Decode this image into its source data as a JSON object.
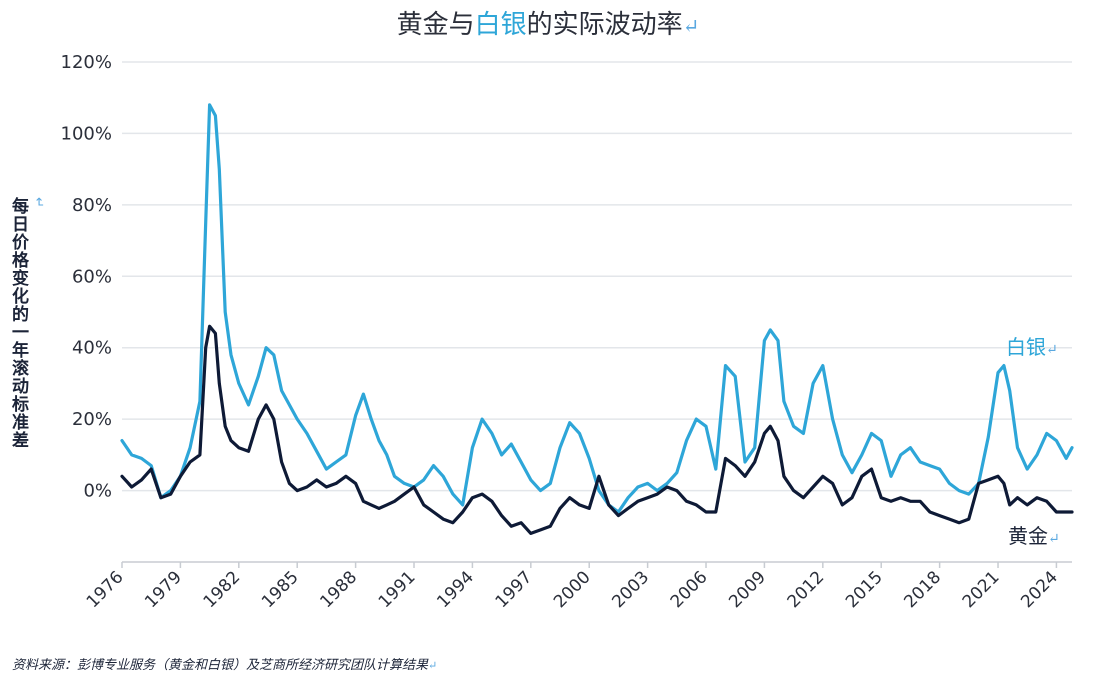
{
  "title_parts": {
    "pre": "黄金与",
    "highlight": "白银",
    "post": "的实际波动率",
    "mark": "↵"
  },
  "ylabel": "每日价格变化的一年滚动标准差",
  "ylabel_mark": "↵",
  "source_text": "资料来源：彭博专业服务（黄金和白银）及芝商所经济研究团队计算结果",
  "source_mark": "↵",
  "colors": {
    "silver": "#2ea6d8",
    "gold": "#0e1a36",
    "grid": "#e3e6ea",
    "axis": "#c8ccd2"
  },
  "chart_data": {
    "type": "line",
    "title": "黄金与白银的实际波动率",
    "ylabel": "每日价格变化的一年滚动标准差",
    "xlabel": "",
    "xlim": [
      1976,
      2024.8
    ],
    "ylim": [
      -20,
      120
    ],
    "y_ticks": [
      120,
      100,
      80,
      60,
      40,
      20,
      0
    ],
    "y_tick_labels": [
      "120%",
      "100%",
      "80%",
      "60%",
      "40%",
      "20%",
      "0%"
    ],
    "x_ticks": [
      1976,
      1979,
      1982,
      1985,
      1988,
      1991,
      1994,
      1997,
      2000,
      2003,
      2006,
      2009,
      2012,
      2015,
      2018,
      2021,
      2024
    ],
    "x_tick_labels": [
      "1976",
      "1979",
      "1982",
      "1985",
      "1988",
      "1991",
      "1994",
      "1997",
      "2000",
      "2003",
      "2006",
      "2009",
      "2012",
      "2015",
      "2018",
      "2021",
      "2024"
    ],
    "grid": true,
    "series": [
      {
        "name": "白银",
        "label_text": "白银",
        "label_mark": "↵",
        "x": [
          1976.0,
          1976.5,
          1977.0,
          1977.5,
          1978.0,
          1978.5,
          1979.0,
          1979.5,
          1980.0,
          1980.3,
          1980.5,
          1980.8,
          1981.0,
          1981.3,
          1981.6,
          1982.0,
          1982.5,
          1983.0,
          1983.4,
          1983.8,
          1984.2,
          1984.6,
          1985.0,
          1985.5,
          1986.0,
          1986.5,
          1987.0,
          1987.5,
          1988.0,
          1988.4,
          1988.8,
          1989.2,
          1989.6,
          1990.0,
          1990.5,
          1991.0,
          1991.5,
          1992.0,
          1992.5,
          1993.0,
          1993.5,
          1994.0,
          1994.5,
          1995.0,
          1995.5,
          1996.0,
          1996.5,
          1997.0,
          1997.5,
          1998.0,
          1998.5,
          1999.0,
          1999.5,
          2000.0,
          2000.5,
          2001.0,
          2001.5,
          2002.0,
          2002.5,
          2003.0,
          2003.5,
          2004.0,
          2004.5,
          2005.0,
          2005.5,
          2006.0,
          2006.5,
          2007.0,
          2007.5,
          2008.0,
          2008.5,
          2009.0,
          2009.3,
          2009.7,
          2010.0,
          2010.5,
          2011.0,
          2011.5,
          2012.0,
          2012.5,
          2013.0,
          2013.5,
          2014.0,
          2014.5,
          2015.0,
          2015.5,
          2016.0,
          2016.5,
          2017.0,
          2017.5,
          2018.0,
          2018.5,
          2019.0,
          2019.5,
          2020.0,
          2020.5,
          2021.0,
          2021.3,
          2021.6,
          2022.0,
          2022.5,
          2023.0,
          2023.5,
          2024.0,
          2024.5,
          2024.8
        ],
        "y": [
          14,
          10,
          9,
          7,
          -2,
          0,
          4,
          12,
          25,
          75,
          108,
          105,
          90,
          50,
          38,
          30,
          24,
          32,
          40,
          38,
          28,
          24,
          20,
          16,
          11,
          6,
          8,
          10,
          21,
          27,
          20,
          14,
          10,
          4,
          2,
          1,
          3,
          7,
          4,
          -1,
          -4,
          12,
          20,
          16,
          10,
          13,
          8,
          3,
          0,
          2,
          12,
          19,
          16,
          9,
          0,
          -4,
          -6,
          -2,
          1,
          2,
          0,
          2,
          5,
          14,
          20,
          18,
          6,
          35,
          32,
          8,
          12,
          42,
          45,
          42,
          25,
          18,
          16,
          30,
          35,
          20,
          10,
          5,
          10,
          16,
          14,
          4,
          10,
          12,
          8,
          7,
          6,
          2,
          0,
          -1,
          2,
          15,
          33,
          35,
          28,
          12,
          6,
          10,
          16,
          14,
          9,
          12
        ]
      },
      {
        "name": "黄金",
        "label_text": "黄金",
        "label_mark": "↵",
        "x": [
          1976.0,
          1976.5,
          1977.0,
          1977.5,
          1978.0,
          1978.5,
          1979.0,
          1979.5,
          1980.0,
          1980.3,
          1980.5,
          1980.8,
          1981.0,
          1981.3,
          1981.6,
          1982.0,
          1982.5,
          1983.0,
          1983.4,
          1983.8,
          1984.2,
          1984.6,
          1985.0,
          1985.5,
          1986.0,
          1986.5,
          1987.0,
          1987.5,
          1988.0,
          1988.4,
          1988.8,
          1989.2,
          1989.6,
          1990.0,
          1990.5,
          1991.0,
          1991.5,
          1992.0,
          1992.5,
          1993.0,
          1993.5,
          1994.0,
          1994.5,
          1995.0,
          1995.5,
          1996.0,
          1996.5,
          1997.0,
          1997.5,
          1998.0,
          1998.5,
          1999.0,
          1999.5,
          2000.0,
          2000.5,
          2001.0,
          2001.5,
          2002.0,
          2002.5,
          2003.0,
          2003.5,
          2004.0,
          2004.5,
          2005.0,
          2005.5,
          2006.0,
          2006.5,
          2007.0,
          2007.5,
          2008.0,
          2008.5,
          2009.0,
          2009.3,
          2009.7,
          2010.0,
          2010.5,
          2011.0,
          2011.5,
          2012.0,
          2012.5,
          2013.0,
          2013.5,
          2014.0,
          2014.5,
          2015.0,
          2015.5,
          2016.0,
          2016.5,
          2017.0,
          2017.5,
          2018.0,
          2018.5,
          2019.0,
          2019.5,
          2020.0,
          2020.5,
          2021.0,
          2021.3,
          2021.6,
          2022.0,
          2022.5,
          2023.0,
          2023.5,
          2024.0,
          2024.5,
          2024.8
        ],
        "y": [
          4,
          1,
          3,
          6,
          -2,
          -1,
          4,
          8,
          10,
          40,
          46,
          44,
          30,
          18,
          14,
          12,
          11,
          20,
          24,
          20,
          8,
          2,
          0,
          1,
          3,
          1,
          2,
          4,
          2,
          -3,
          -4,
          -5,
          -4,
          -3,
          -1,
          1,
          -4,
          -6,
          -8,
          -9,
          -6,
          -2,
          -1,
          -3,
          -7,
          -10,
          -9,
          -12,
          -11,
          -10,
          -5,
          -2,
          -4,
          -5,
          4,
          -4,
          -7,
          -5,
          -3,
          -2,
          -1,
          1,
          0,
          -3,
          -4,
          -6,
          -6,
          9,
          7,
          4,
          8,
          16,
          18,
          14,
          4,
          0,
          -2,
          1,
          4,
          2,
          -4,
          -2,
          4,
          6,
          -2,
          -3,
          -2,
          -3,
          -3,
          -6,
          -7,
          -8,
          -9,
          -8,
          2,
          3,
          4,
          2,
          -4,
          -2,
          -4,
          -2,
          -3,
          -6,
          -6,
          -6
        ]
      }
    ]
  }
}
